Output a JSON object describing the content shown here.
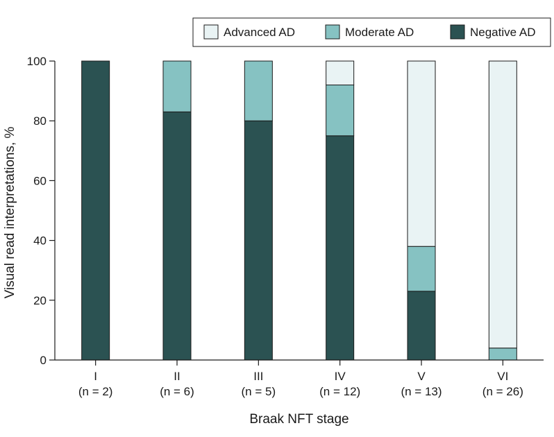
{
  "chart_data": {
    "type": "bar",
    "stacked": true,
    "categories": [
      "I",
      "II",
      "III",
      "IV",
      "V",
      "VI"
    ],
    "category_counts": [
      "(n = 2)",
      "(n = 6)",
      "(n = 5)",
      "(n = 12)",
      "(n = 13)",
      "(n = 26)"
    ],
    "series": [
      {
        "name": "Negative AD",
        "color": "#2b5252",
        "values": [
          100,
          83,
          80,
          75,
          23,
          0
        ]
      },
      {
        "name": "Moderate AD",
        "color": "#86c2c2",
        "values": [
          0,
          17,
          20,
          17,
          15,
          4
        ]
      },
      {
        "name": "Advanced AD",
        "color": "#e9f3f4",
        "values": [
          0,
          0,
          0,
          8,
          62,
          96
        ]
      }
    ],
    "legend_order": [
      "Advanced AD",
      "Moderate AD",
      "Negative AD"
    ],
    "xlabel": "Braak NFT stage",
    "ylabel": "Visual read interpretations, %",
    "ylim": [
      0,
      100
    ],
    "yticks": [
      0,
      20,
      40,
      60,
      80,
      100
    ],
    "legend_position": "top-right",
    "grid": false
  }
}
